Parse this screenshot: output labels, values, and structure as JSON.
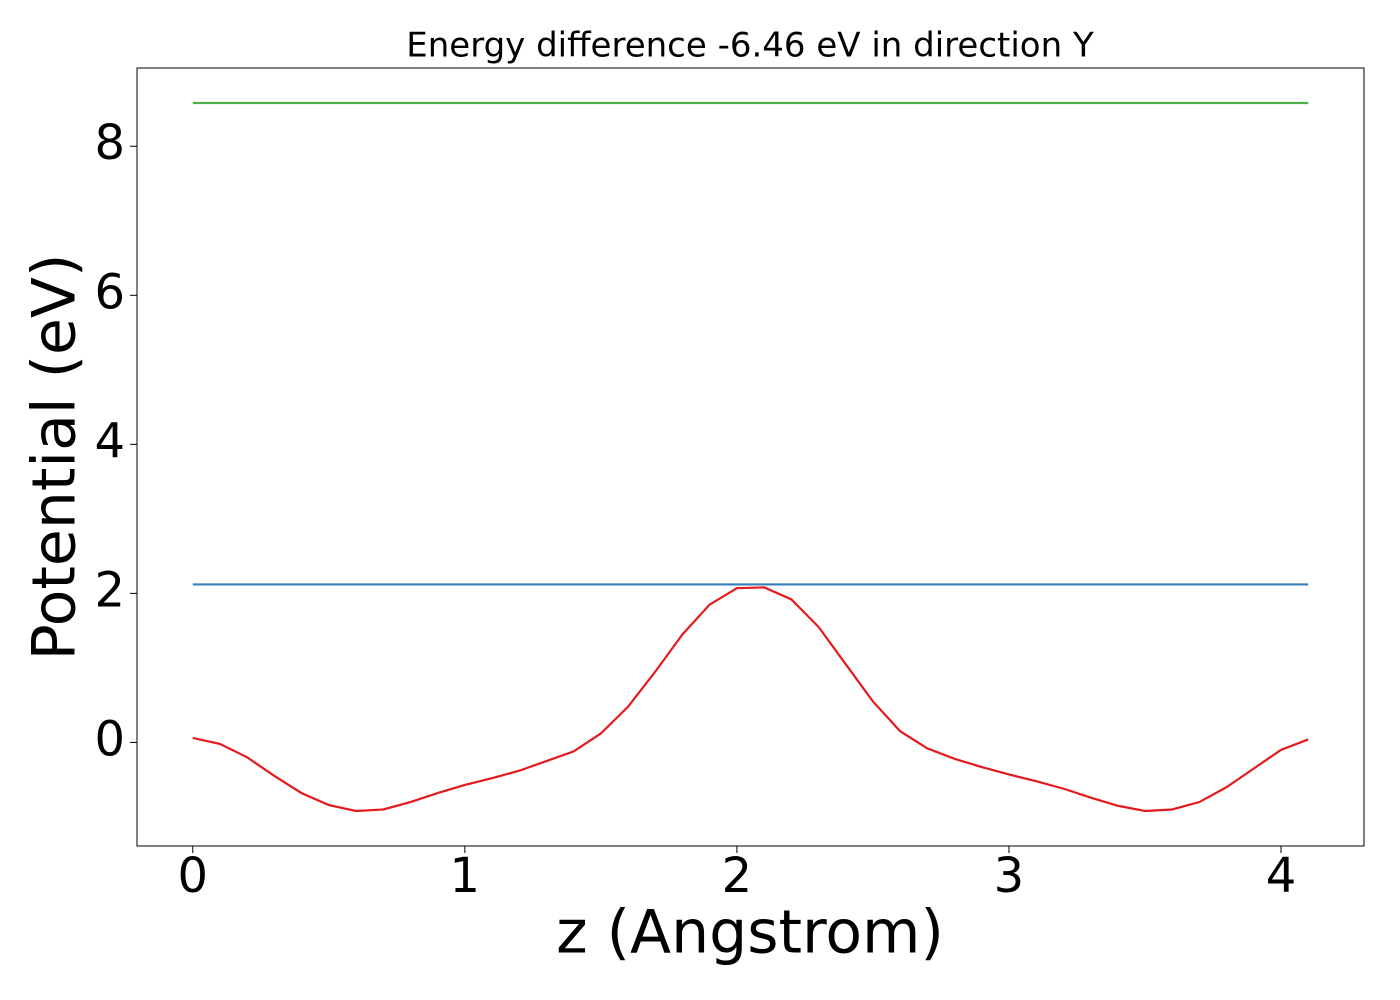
{
  "chart_data": {
    "type": "line",
    "title": "Energy difference -6.46 eV in direction Y",
    "x_label": "z (Angstrom)",
    "y_label": "Potential (eV)",
    "xlim": [
      -0.205,
      4.305
    ],
    "ylim": [
      -1.39,
      9.05
    ],
    "xticks": [
      0,
      1,
      2,
      3,
      4
    ],
    "yticks": [
      0,
      2,
      4,
      6,
      8
    ],
    "series": [
      {
        "color": "#e41a1c",
        "x": [
          0,
          0.1,
          0.2,
          0.3,
          0.4,
          0.5,
          0.6,
          0.7,
          0.8,
          0.9,
          1.0,
          1.1,
          1.2,
          1.3,
          1.4,
          1.5,
          1.6,
          1.7,
          1.8,
          1.9,
          2.0,
          2.1,
          2.2,
          2.3,
          2.4,
          2.5,
          2.6,
          2.7,
          2.8,
          2.9,
          3.0,
          3.1,
          3.2,
          3.3,
          3.4,
          3.5,
          3.6,
          3.7,
          3.8,
          3.9,
          4.0,
          4.1
        ],
        "values": [
          0.06,
          -0.02,
          -0.2,
          -0.45,
          -0.68,
          -0.84,
          -0.92,
          -0.9,
          -0.8,
          -0.68,
          -0.57,
          -0.48,
          -0.38,
          -0.25,
          -0.12,
          0.12,
          0.48,
          0.95,
          1.45,
          1.85,
          2.07,
          2.08,
          1.92,
          1.55,
          1.05,
          0.55,
          0.15,
          -0.08,
          -0.22,
          -0.33,
          -0.43,
          -0.52,
          -0.62,
          -0.74,
          -0.85,
          -0.92,
          -0.9,
          -0.8,
          -0.6,
          -0.35,
          -0.1,
          0.04
        ]
      },
      {
        "color": "#377eb8",
        "x": [
          0,
          4.1
        ],
        "values": [
          2.12,
          2.12
        ]
      },
      {
        "color": "#4daf4a",
        "x": [
          0,
          4.1
        ],
        "values": [
          8.58,
          8.58
        ]
      }
    ]
  }
}
